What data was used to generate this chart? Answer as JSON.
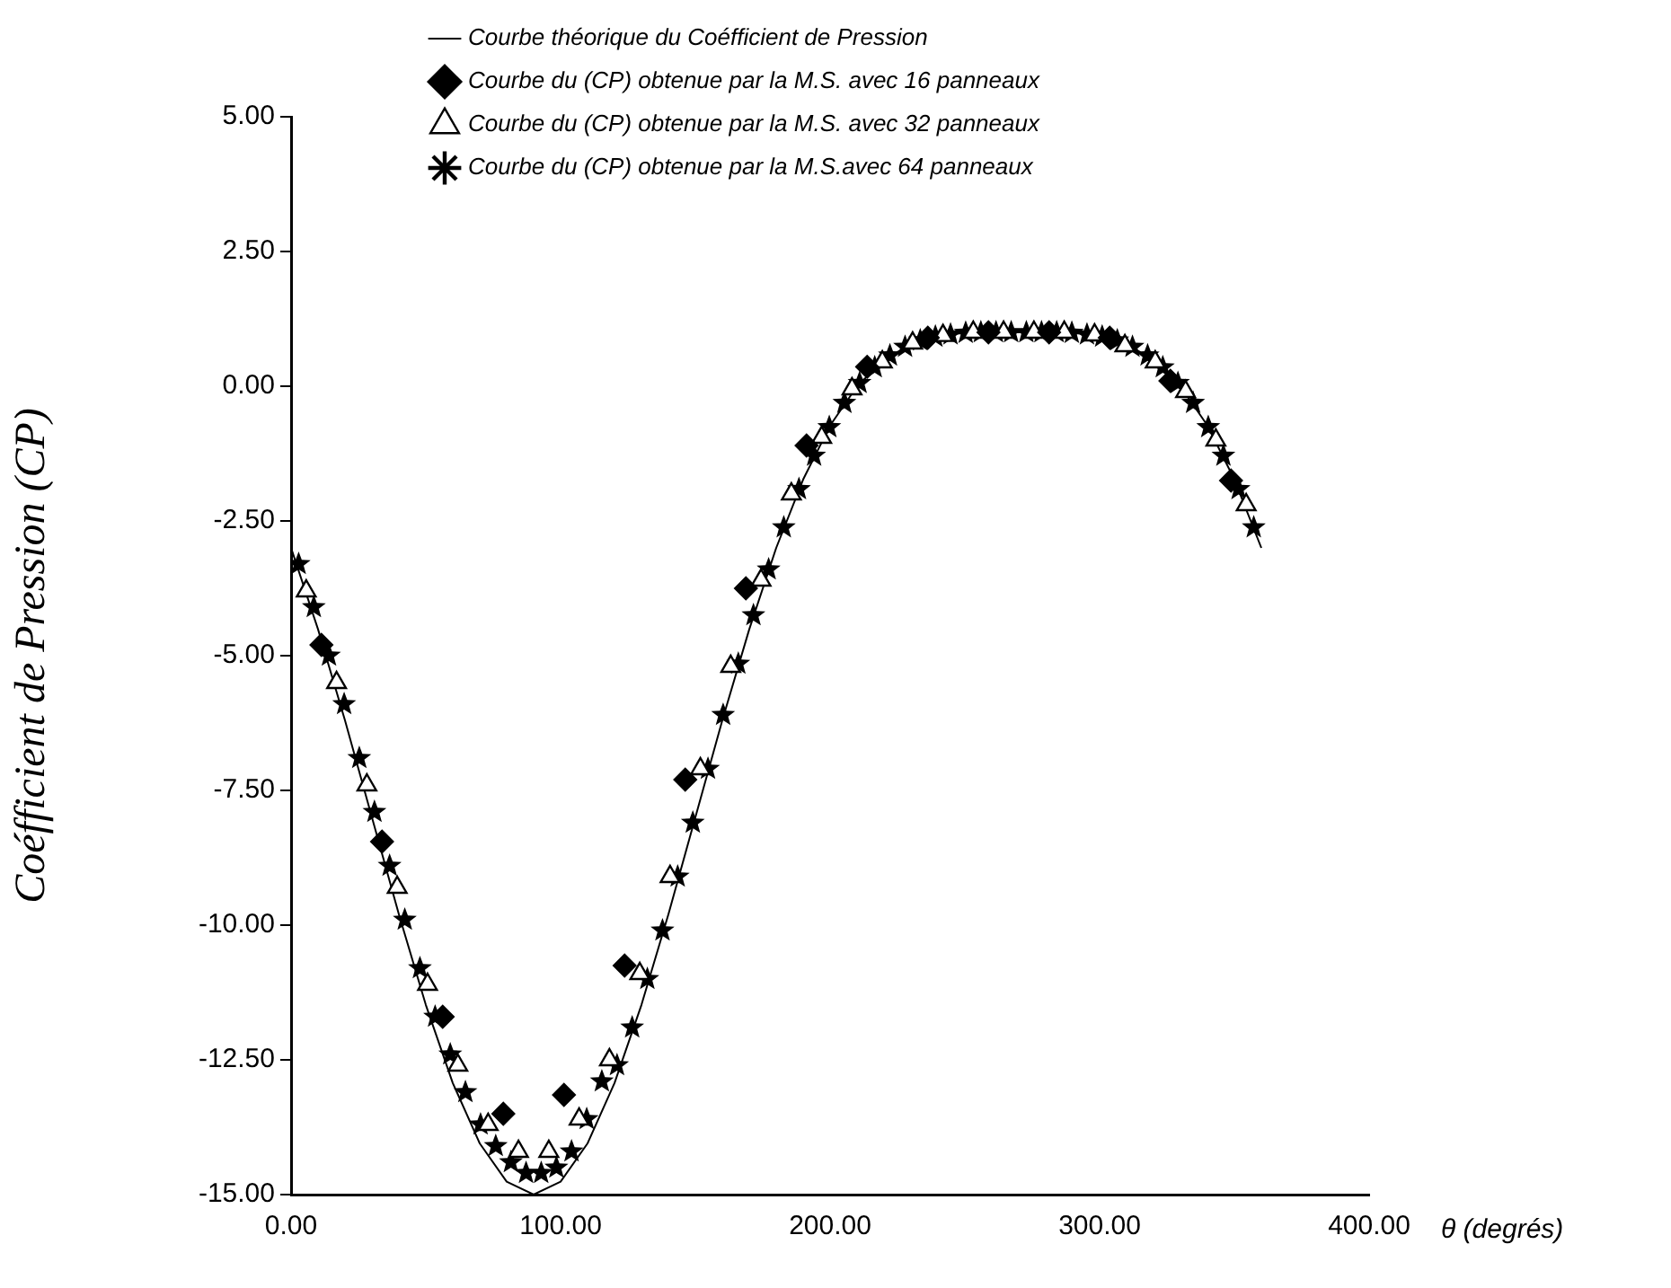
{
  "chart_data": {
    "type": "scatter",
    "ylabel": "Coéfficient de Pression (CP)",
    "xlabel": "θ (degrés)",
    "legend": "top",
    "grid": false,
    "xlim": [
      0,
      400
    ],
    "xticks": [
      {
        "value": 0,
        "label": "0.00"
      },
      {
        "value": 100,
        "label": "100.00"
      },
      {
        "value": 200,
        "label": "200.00"
      },
      {
        "value": 300,
        "label": "300.00"
      },
      {
        "value": 400,
        "label": "400.00"
      }
    ],
    "ylim": [
      -15,
      5
    ],
    "yticks": [
      {
        "value": 5,
        "label": "5.00"
      },
      {
        "value": 2.5,
        "label": "2.50"
      },
      {
        "value": 0,
        "label": "0.00"
      },
      {
        "value": -2.5,
        "label": "-2.50"
      },
      {
        "value": -5,
        "label": "-5.00"
      },
      {
        "value": -7.5,
        "label": "-7.50"
      },
      {
        "value": -10,
        "label": "-10.00"
      },
      {
        "value": -12.5,
        "label": "-12.50"
      },
      {
        "value": -15,
        "label": "-15.00"
      }
    ],
    "series": [
      {
        "name": "Courbe théorique du Coéfficient de Pression",
        "type": "line",
        "marker": "none",
        "line_style": "solid",
        "color": "#000000",
        "x": [
          0,
          10,
          20,
          30,
          40,
          50,
          60,
          70,
          80,
          90,
          100,
          110,
          120,
          130,
          140,
          150,
          160,
          170,
          180,
          190,
          200,
          210,
          220,
          230,
          240,
          250,
          260,
          270,
          280,
          290,
          300,
          310,
          320,
          330,
          340,
          350,
          360
        ],
        "values": [
          -3,
          -4.51,
          -6.2,
          -8,
          -9.8,
          -11.48,
          -12.93,
          -14.05,
          -14.76,
          -15,
          -14.76,
          -14.05,
          -12.93,
          -11.48,
          -9.8,
          -8,
          -6.2,
          -4.51,
          -3,
          -1.73,
          -0.73,
          0,
          0.49,
          0.78,
          0.93,
          0.99,
          1,
          1,
          1,
          0.99,
          0.93,
          0.78,
          0.49,
          0,
          -0.73,
          -1.73,
          -3
        ]
      },
      {
        "name": "Courbe du (CP) obtenue par la M.S. avec 16 panneaux",
        "marker": "diamond",
        "color": "#000000",
        "x": [
          11.25,
          33.75,
          56.25,
          78.75,
          101.25,
          123.75,
          146.25,
          168.75,
          191.25,
          213.75,
          236.25,
          258.75,
          281.25,
          303.75,
          326.25,
          348.75
        ],
        "values": [
          -4.8,
          -8.45,
          -11.7,
          -13.5,
          -13.15,
          -10.75,
          -7.3,
          -3.75,
          -1.1,
          0.36,
          0.9,
          1,
          1,
          0.9,
          0.1,
          -1.75
        ]
      },
      {
        "name": "Courbe du (CP) obtenue par la M.S. avec 32 panneaux",
        "marker": "triangle",
        "color": "#000000",
        "x": [
          5.63,
          16.88,
          28.13,
          39.38,
          50.63,
          61.88,
          73.13,
          84.38,
          95.63,
          106.88,
          118.13,
          129.38,
          140.63,
          151.88,
          163.13,
          174.38,
          185.63,
          196.88,
          208.13,
          219.38,
          230.63,
          241.88,
          253.13,
          264.38,
          275.63,
          286.88,
          298.13,
          309.38,
          320.63,
          331.88,
          343.13,
          354.38
        ],
        "values": [
          -3.8,
          -5.5,
          -7.4,
          -9.3,
          -11.1,
          -12.6,
          -13.7,
          -14.2,
          -14.2,
          -13.6,
          -12.5,
          -10.9,
          -9.1,
          -7.1,
          -5.2,
          -3.6,
          -2,
          -0.95,
          -0.05,
          0.45,
          0.8,
          0.94,
          1,
          1,
          1,
          1,
          0.95,
          0.75,
          0.45,
          -0.1,
          -1,
          -2.2
        ]
      },
      {
        "name": "Courbe du (CP) obtenue par la M.S.avec 64 panneaux",
        "marker": "star",
        "color": "#000000",
        "x": [
          2.81,
          8.44,
          14.06,
          19.69,
          25.31,
          30.94,
          36.56,
          42.19,
          47.81,
          53.44,
          59.06,
          64.69,
          70.31,
          75.94,
          81.56,
          87.19,
          92.81,
          98.44,
          104.06,
          109.69,
          115.31,
          120.94,
          126.56,
          132.19,
          137.81,
          143.44,
          149.06,
          154.69,
          160.31,
          165.94,
          171.56,
          177.19,
          182.81,
          188.44,
          194.06,
          199.69,
          205.31,
          210.94,
          216.56,
          222.19,
          227.81,
          233.44,
          239.06,
          244.69,
          250.31,
          255.94,
          261.56,
          267.19,
          272.81,
          278.44,
          284.06,
          289.69,
          295.31,
          300.94,
          306.56,
          312.19,
          317.81,
          323.44,
          329.06,
          334.69,
          340.31,
          345.94,
          351.56,
          357.19
        ],
        "values": [
          -3.3,
          -4.1,
          -5,
          -5.9,
          -6.9,
          -7.9,
          -8.9,
          -9.9,
          -10.8,
          -11.7,
          -12.4,
          -13.1,
          -13.7,
          -14.1,
          -14.4,
          -14.6,
          -14.6,
          -14.5,
          -14.2,
          -13.6,
          -12.9,
          -12.6,
          -11.9,
          -11,
          -10.1,
          -9.1,
          -8.1,
          -7.1,
          -6.1,
          -5.15,
          -4.25,
          -3.4,
          -2.62,
          -1.91,
          -1.29,
          -0.76,
          -0.31,
          0.06,
          0.35,
          0.57,
          0.73,
          0.85,
          0.92,
          0.96,
          0.99,
          1,
          1,
          1,
          1,
          1,
          1,
          0.99,
          0.96,
          0.92,
          0.85,
          0.73,
          0.57,
          0.35,
          0.06,
          -0.31,
          -0.76,
          -1.29,
          -1.91,
          -2.62
        ]
      }
    ]
  }
}
